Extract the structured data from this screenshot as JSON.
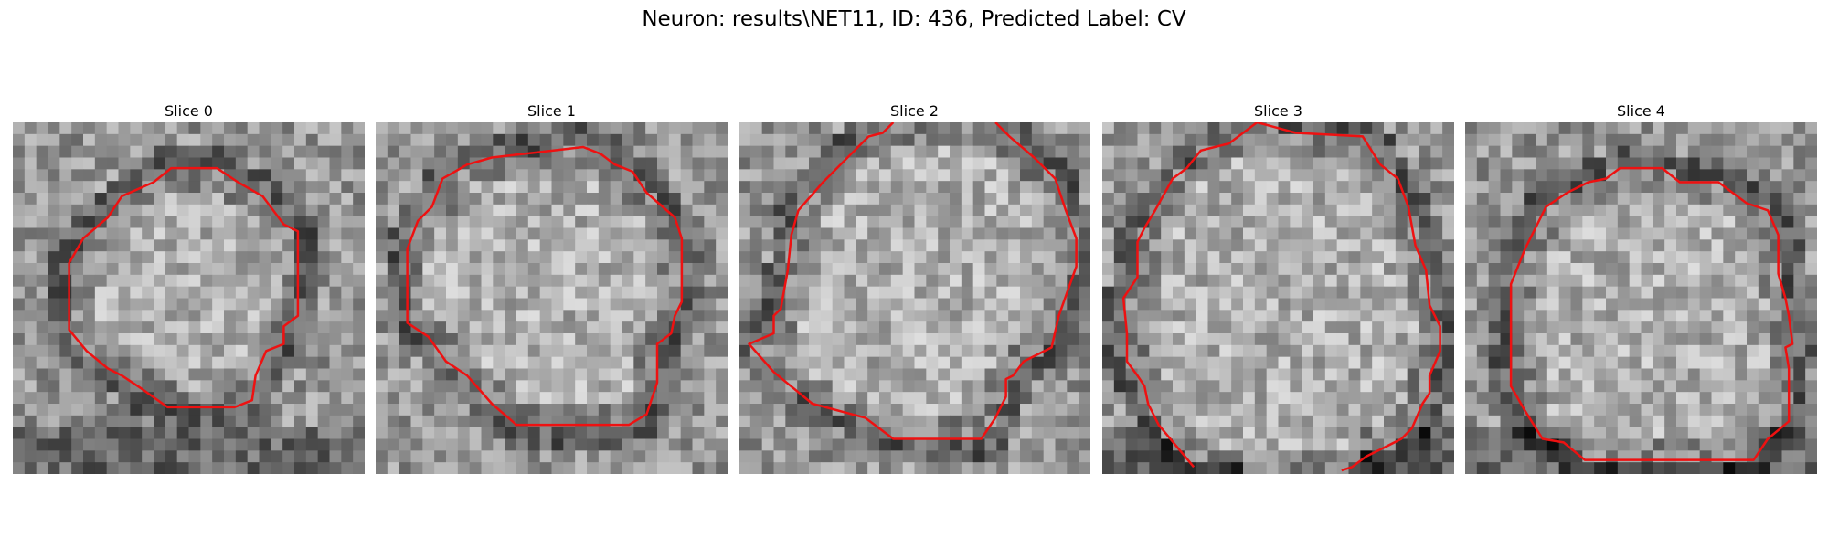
{
  "figure": {
    "title": "Neuron: results\\NET11, ID: 436, Predicted Label: CV"
  },
  "style": {
    "contour_color": "#ee1111"
  },
  "panels": [
    {
      "title": "Slice 0",
      "contour": [
        [
          0.45,
          0.13
        ],
        [
          0.58,
          0.13
        ],
        [
          0.64,
          0.17
        ],
        [
          0.71,
          0.21
        ],
        [
          0.77,
          0.29
        ],
        [
          0.81,
          0.31
        ],
        [
          0.81,
          0.55
        ],
        [
          0.77,
          0.58
        ],
        [
          0.77,
          0.63
        ],
        [
          0.72,
          0.65
        ],
        [
          0.69,
          0.72
        ],
        [
          0.68,
          0.79
        ],
        [
          0.63,
          0.81
        ],
        [
          0.44,
          0.81
        ],
        [
          0.37,
          0.76
        ],
        [
          0.31,
          0.72
        ],
        [
          0.27,
          0.7
        ],
        [
          0.21,
          0.65
        ],
        [
          0.16,
          0.59
        ],
        [
          0.16,
          0.4
        ],
        [
          0.2,
          0.33
        ],
        [
          0.27,
          0.27
        ],
        [
          0.31,
          0.21
        ],
        [
          0.4,
          0.17
        ]
      ],
      "closed": true
    },
    {
      "title": "Slice 1",
      "contour": [
        [
          0.33,
          0.1
        ],
        [
          0.59,
          0.07
        ],
        [
          0.64,
          0.09
        ],
        [
          0.68,
          0.12
        ],
        [
          0.73,
          0.14
        ],
        [
          0.77,
          0.2
        ],
        [
          0.85,
          0.27
        ],
        [
          0.87,
          0.33
        ],
        [
          0.87,
          0.51
        ],
        [
          0.85,
          0.55
        ],
        [
          0.84,
          0.6
        ],
        [
          0.8,
          0.63
        ],
        [
          0.8,
          0.74
        ],
        [
          0.77,
          0.83
        ],
        [
          0.72,
          0.86
        ],
        [
          0.4,
          0.86
        ],
        [
          0.33,
          0.8
        ],
        [
          0.26,
          0.72
        ],
        [
          0.2,
          0.68
        ],
        [
          0.15,
          0.61
        ],
        [
          0.09,
          0.57
        ],
        [
          0.09,
          0.36
        ],
        [
          0.12,
          0.28
        ],
        [
          0.16,
          0.24
        ],
        [
          0.19,
          0.16
        ],
        [
          0.26,
          0.12
        ]
      ],
      "closed": true
    },
    {
      "title": "Slice 2",
      "contour": [
        [
          0.44,
          0.0
        ],
        [
          0.41,
          0.03
        ],
        [
          0.37,
          0.04
        ],
        [
          0.31,
          0.1
        ],
        [
          0.24,
          0.17
        ],
        [
          0.17,
          0.25
        ],
        [
          0.15,
          0.32
        ],
        [
          0.14,
          0.42
        ],
        [
          0.12,
          0.53
        ],
        [
          0.1,
          0.55
        ],
        [
          0.1,
          0.6
        ],
        [
          0.03,
          0.63
        ],
        [
          0.1,
          0.71
        ],
        [
          0.21,
          0.8
        ],
        [
          0.36,
          0.84
        ],
        [
          0.44,
          0.9
        ],
        [
          0.69,
          0.9
        ],
        [
          0.73,
          0.84
        ],
        [
          0.76,
          0.78
        ],
        [
          0.76,
          0.73
        ],
        [
          0.78,
          0.72
        ],
        [
          0.81,
          0.68
        ],
        [
          0.89,
          0.64
        ],
        [
          0.91,
          0.55
        ],
        [
          0.96,
          0.41
        ],
        [
          0.96,
          0.33
        ],
        [
          0.93,
          0.25
        ],
        [
          0.9,
          0.16
        ],
        [
          0.84,
          0.1
        ],
        [
          0.77,
          0.04
        ],
        [
          0.73,
          0.0
        ]
      ],
      "closed": false
    },
    {
      "title": "Slice 3",
      "contour": [
        [
          0.26,
          0.98
        ],
        [
          0.16,
          0.86
        ],
        [
          0.13,
          0.8
        ],
        [
          0.12,
          0.75
        ],
        [
          0.1,
          0.72
        ],
        [
          0.07,
          0.68
        ],
        [
          0.07,
          0.6
        ],
        [
          0.06,
          0.5
        ],
        [
          0.1,
          0.44
        ],
        [
          0.1,
          0.34
        ],
        [
          0.12,
          0.3
        ],
        [
          0.15,
          0.25
        ],
        [
          0.2,
          0.16
        ],
        [
          0.24,
          0.13
        ],
        [
          0.28,
          0.08
        ],
        [
          0.36,
          0.06
        ],
        [
          0.44,
          0.0
        ],
        [
          0.55,
          0.03
        ],
        [
          0.74,
          0.04
        ],
        [
          0.79,
          0.12
        ],
        [
          0.84,
          0.16
        ],
        [
          0.87,
          0.24
        ],
        [
          0.89,
          0.35
        ],
        [
          0.92,
          0.42
        ],
        [
          0.93,
          0.52
        ],
        [
          0.96,
          0.58
        ],
        [
          0.96,
          0.65
        ],
        [
          0.93,
          0.72
        ],
        [
          0.93,
          0.77
        ],
        [
          0.91,
          0.8
        ],
        [
          0.88,
          0.87
        ],
        [
          0.85,
          0.9
        ],
        [
          0.79,
          0.93
        ],
        [
          0.75,
          0.95
        ],
        [
          0.71,
          0.98
        ],
        [
          0.68,
          0.99
        ]
      ],
      "closed": false
    },
    {
      "title": "Slice 4",
      "contour": [
        [
          0.35,
          0.17
        ],
        [
          0.4,
          0.16
        ],
        [
          0.44,
          0.13
        ],
        [
          0.56,
          0.13
        ],
        [
          0.61,
          0.17
        ],
        [
          0.72,
          0.17
        ],
        [
          0.8,
          0.23
        ],
        [
          0.86,
          0.25
        ],
        [
          0.89,
          0.32
        ],
        [
          0.89,
          0.43
        ],
        [
          0.91,
          0.5
        ],
        [
          0.92,
          0.55
        ],
        [
          0.93,
          0.63
        ],
        [
          0.91,
          0.64
        ],
        [
          0.92,
          0.7
        ],
        [
          0.92,
          0.85
        ],
        [
          0.86,
          0.9
        ],
        [
          0.82,
          0.96
        ],
        [
          0.34,
          0.96
        ],
        [
          0.28,
          0.91
        ],
        [
          0.22,
          0.9
        ],
        [
          0.17,
          0.82
        ],
        [
          0.13,
          0.75
        ],
        [
          0.13,
          0.46
        ],
        [
          0.15,
          0.41
        ],
        [
          0.17,
          0.36
        ],
        [
          0.2,
          0.3
        ],
        [
          0.23,
          0.24
        ],
        [
          0.29,
          0.2
        ]
      ],
      "closed": true
    }
  ]
}
